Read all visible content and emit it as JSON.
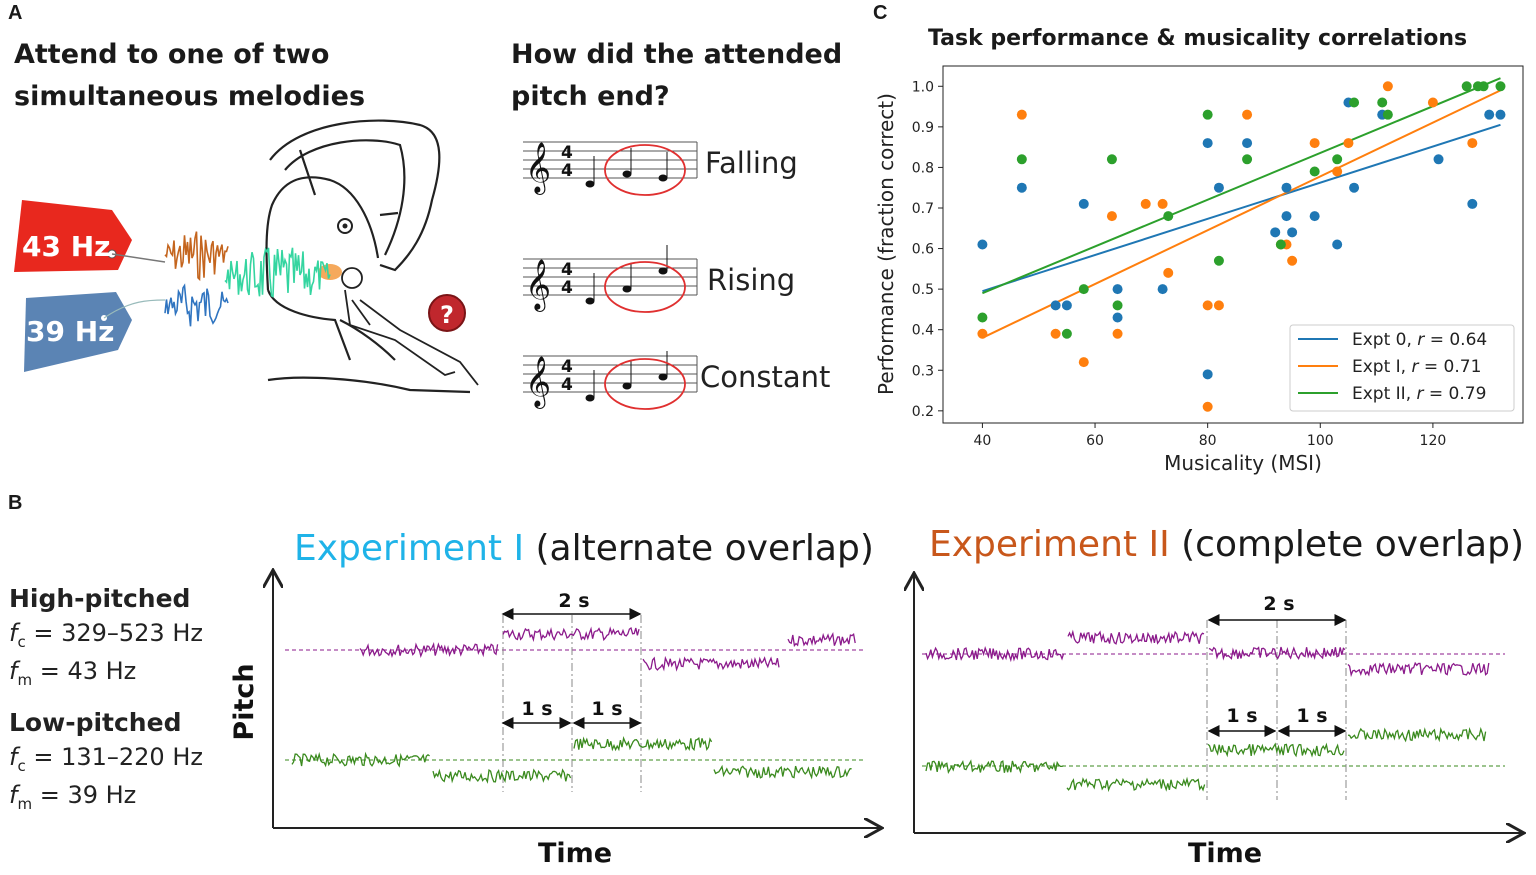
{
  "panel_a": {
    "label": "A",
    "left_line1": "Attend to one of two",
    "left_line2": "simultaneous melodies",
    "tag_high": "43 Hz",
    "tag_low": "39 Hz",
    "right_line1": "How did the attended",
    "right_line2": "pitch end?",
    "notes": [
      "Falling",
      "Rising",
      "Constant"
    ],
    "question_mark": "?",
    "colors": {
      "tag_high": "#e8281e",
      "tag_low": "#5b84b4",
      "wave_high": "#c4651e",
      "wave_low": "#2f74c0",
      "wave_mix": "#34d5a0",
      "circle": "#e03030"
    }
  },
  "panel_b": {
    "label": "B",
    "high_heading": "High-pitched",
    "high_fc": "= 329–523 Hz",
    "high_fm": "= 43 Hz",
    "low_heading": "Low-pitched",
    "low_fc": "= 131–220 Hz",
    "low_fm": "= 39 Hz",
    "f_symbol": "f",
    "sub_c": "c",
    "sub_m": "m",
    "exp1_name": "Experiment I",
    "exp1_desc": " (alternate overlap)",
    "exp2_name": "Experiment II",
    "exp2_desc": " (complete overlap)",
    "y_axis": "Pitch",
    "x_axis": "Time",
    "dur_2s": "2 s",
    "dur_1s": "1 s",
    "colors": {
      "exp1": "#1fb3e8",
      "exp2": "#c8571b",
      "high": "#8b1a8b",
      "low": "#3a8a1e"
    }
  },
  "panel_c": {
    "label": "C",
    "chart_data": {
      "type": "scatter",
      "title": "Task performance & musicality correlations",
      "xlabel": "Musicality (MSI)",
      "ylabel": "Performance (fraction correct)",
      "xlim": [
        33,
        136
      ],
      "ylim": [
        0.17,
        1.05
      ],
      "xticks": [
        40,
        60,
        80,
        100,
        120
      ],
      "yticks": [
        0.2,
        0.3,
        0.4,
        0.5,
        0.6,
        0.7,
        0.8,
        0.9,
        1.0
      ],
      "legend_position": "lower-right",
      "grid": false,
      "series": [
        {
          "name": "Expt 0",
          "r": "0.64",
          "color": "#1f77b4",
          "fit": [
            [
              40,
              0.495
            ],
            [
              132,
              0.905
            ]
          ],
          "points": [
            [
              40,
              0.61
            ],
            [
              47,
              0.75
            ],
            [
              53,
              0.46
            ],
            [
              55,
              0.46
            ],
            [
              58,
              0.71
            ],
            [
              64,
              0.5
            ],
            [
              64,
              0.43
            ],
            [
              72,
              0.5
            ],
            [
              80,
              0.86
            ],
            [
              80,
              0.29
            ],
            [
              82,
              0.75
            ],
            [
              87,
              0.86
            ],
            [
              92,
              0.64
            ],
            [
              94,
              0.75
            ],
            [
              94,
              0.68
            ],
            [
              95,
              0.64
            ],
            [
              99,
              0.68
            ],
            [
              103,
              0.61
            ],
            [
              105,
              0.96
            ],
            [
              106,
              0.75
            ],
            [
              111,
              0.93
            ],
            [
              121,
              0.82
            ],
            [
              127,
              0.71
            ],
            [
              130,
              0.93
            ],
            [
              132,
              0.93
            ]
          ]
        },
        {
          "name": "Expt I",
          "r": "0.71",
          "color": "#ff7f0e",
          "fit": [
            [
              40,
              0.38
            ],
            [
              132,
              0.99
            ]
          ],
          "points": [
            [
              40,
              0.39
            ],
            [
              47,
              0.93
            ],
            [
              53,
              0.39
            ],
            [
              58,
              0.32
            ],
            [
              63,
              0.68
            ],
            [
              64,
              0.39
            ],
            [
              69,
              0.71
            ],
            [
              72,
              0.71
            ],
            [
              73,
              0.54
            ],
            [
              80,
              0.46
            ],
            [
              80,
              0.21
            ],
            [
              82,
              0.46
            ],
            [
              87,
              0.93
            ],
            [
              93,
              0.61
            ],
            [
              94,
              0.61
            ],
            [
              95,
              0.57
            ],
            [
              99,
              0.86
            ],
            [
              103,
              0.79
            ],
            [
              105,
              0.86
            ],
            [
              112,
              1.0
            ],
            [
              120,
              0.96
            ],
            [
              127,
              0.86
            ]
          ]
        },
        {
          "name": "Expt II",
          "r": "0.79",
          "color": "#2ca02c",
          "fit": [
            [
              40,
              0.49
            ],
            [
              132,
              1.02
            ]
          ],
          "points": [
            [
              40,
              0.43
            ],
            [
              47,
              0.82
            ],
            [
              58,
              0.5
            ],
            [
              63,
              0.82
            ],
            [
              64,
              0.46
            ],
            [
              73,
              0.68
            ],
            [
              80,
              0.93
            ],
            [
              82,
              0.57
            ],
            [
              87,
              0.82
            ],
            [
              93,
              0.61
            ],
            [
              99,
              0.79
            ],
            [
              103,
              0.82
            ],
            [
              106,
              0.96
            ],
            [
              111,
              0.96
            ],
            [
              112,
              0.93
            ],
            [
              126,
              1.0
            ],
            [
              128,
              1.0
            ],
            [
              129,
              1.0
            ],
            [
              132,
              1.0
            ],
            [
              55,
              0.39
            ]
          ]
        }
      ]
    }
  }
}
